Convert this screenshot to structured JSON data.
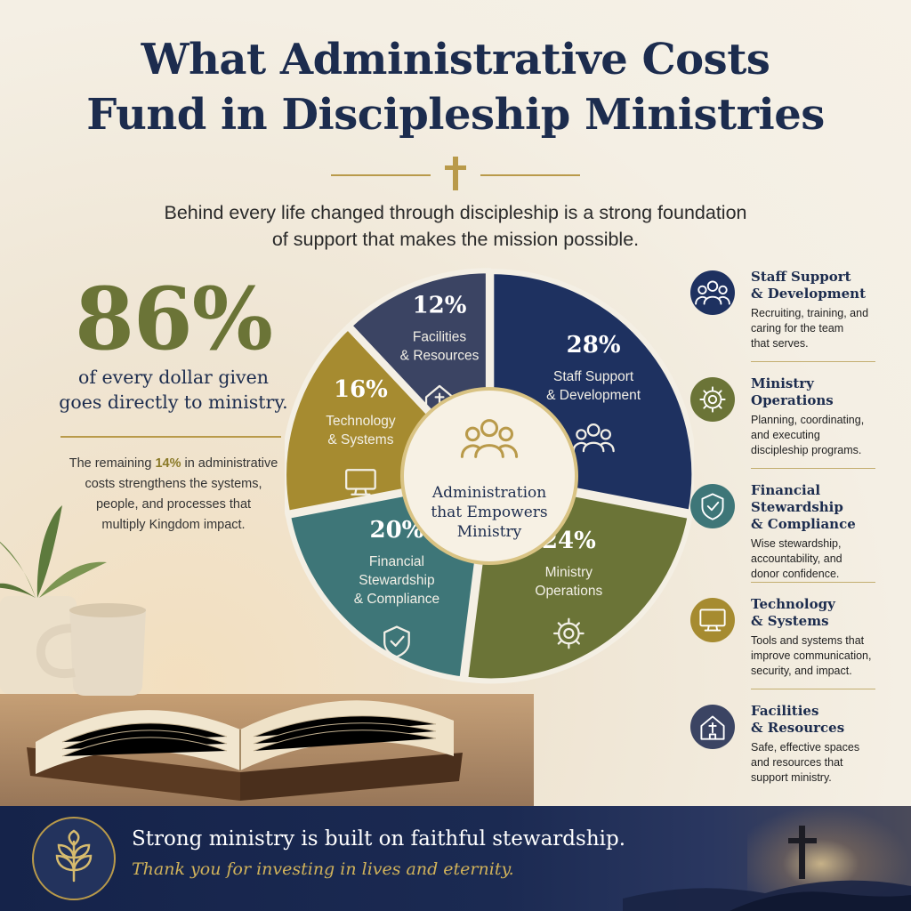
{
  "title_line1": "What Administrative Costs",
  "title_line2": "Fund in Discipleship Ministries",
  "subtitle_line1": "Behind every life changed through discipleship is a strong foundation",
  "subtitle_line2": "of support that makes the mission possible.",
  "headline_percent": "86%",
  "headline_caption_line1": "of every dollar given",
  "headline_caption_line2": "goes directly to ministry.",
  "remaining": {
    "prefix": "The remaining ",
    "highlight": "14%",
    "line1_rest": " in administrative",
    "line2": "costs strengthens the systems,",
    "line3": "people, and processes that",
    "line4": "multiply Kingdom impact."
  },
  "center_label": [
    "Administration",
    "that Empowers",
    "Ministry"
  ],
  "colors": {
    "navy": "#1e3160",
    "olive": "#6b7437",
    "teal": "#3e7678",
    "slate": "#3b4463",
    "gold": "#a68b30",
    "accent_gold": "#b99a4a"
  },
  "chart_data": {
    "type": "pie",
    "series": [
      {
        "name": "Staff Support & Development",
        "label_lines": [
          "Staff Support",
          "& Development"
        ],
        "value": 28,
        "display": "28%",
        "color": "#1e3160",
        "icon": "people-icon"
      },
      {
        "name": "Ministry Operations",
        "label_lines": [
          "Ministry",
          "Operations"
        ],
        "value": 24,
        "display": "24%",
        "color": "#6b7437",
        "icon": "gear-icon"
      },
      {
        "name": "Financial Stewardship & Compliance",
        "label_lines": [
          "Financial",
          "Stewardship",
          "& Compliance"
        ],
        "value": 20,
        "display": "20%",
        "color": "#3e7678",
        "icon": "shield-icon"
      },
      {
        "name": "Technology & Systems",
        "label_lines": [
          "Technology",
          "& Systems"
        ],
        "value": 16,
        "display": "16%",
        "color": "#a68b30",
        "icon": "monitor-icon"
      },
      {
        "name": "Facilities & Resources",
        "label_lines": [
          "Facilities",
          "& Resources"
        ],
        "value": 12,
        "display": "12%",
        "color": "#3b4463",
        "icon": "church-icon"
      }
    ]
  },
  "legend": [
    {
      "title_lines": [
        "Staff Support",
        "& Development"
      ],
      "desc_lines": [
        "Recruiting, training, and",
        "caring for the team",
        "that serves."
      ],
      "color": "#1e3160",
      "icon": "people-icon"
    },
    {
      "title_lines": [
        "Ministry",
        "Operations"
      ],
      "desc_lines": [
        "Planning, coordinating,",
        "and executing",
        "discipleship programs."
      ],
      "color": "#6b7437",
      "icon": "gear-icon"
    },
    {
      "title_lines": [
        "Financial",
        "Stewardship",
        "& Compliance"
      ],
      "desc_lines": [
        "Wise stewardship,",
        "accountability, and",
        "donor confidence."
      ],
      "color": "#3e7678",
      "icon": "shield-icon"
    },
    {
      "title_lines": [
        "Technology",
        "& Systems"
      ],
      "desc_lines": [
        "Tools and systems that",
        "improve communication,",
        "security, and impact."
      ],
      "color": "#a68b30",
      "icon": "monitor-icon"
    },
    {
      "title_lines": [
        "Facilities",
        "& Resources"
      ],
      "desc_lines": [
        "Safe, effective spaces",
        "and resources that",
        "support ministry."
      ],
      "color": "#3b4463",
      "icon": "church-icon"
    }
  ],
  "footer": {
    "line1": "Strong ministry is built on faithful stewardship.",
    "line2": "Thank you for investing in lives and eternity."
  }
}
